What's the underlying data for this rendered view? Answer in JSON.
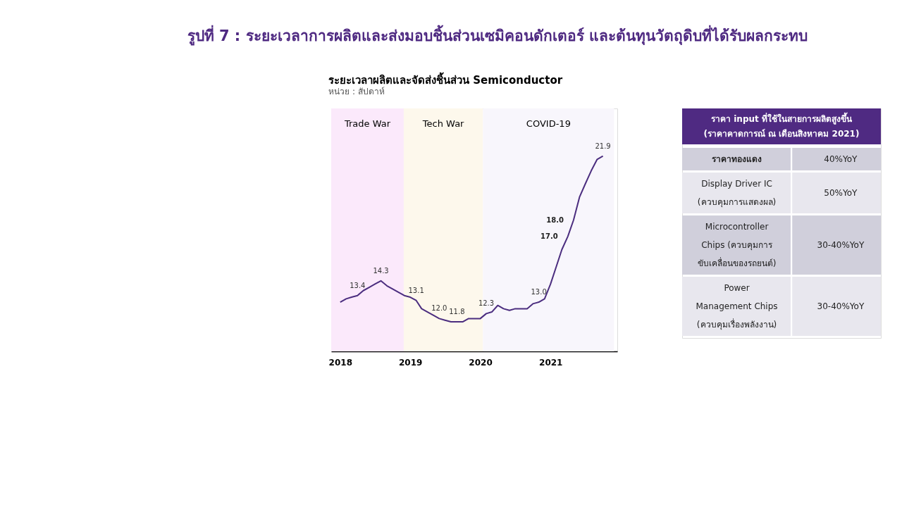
{
  "chart_data": [
    {
      "type": "line",
      "title": "ระยะเวลาผลิตและจัดส่งชิ้นส่วน Semiconductor",
      "subtitle": "หน่วย : สัปดาห์",
      "annotations": [
        "รูปที่ 7 : ระยะเวลาการผลิตและส่งมอบชิ้นส่วนเซมิคอนดักเตอร์ และต้นทุนวัตถุดิบที่ได้รับผลกระทบ"
      ],
      "x": [
        "2018-01",
        "2018-02",
        "2018-03",
        "2018-04",
        "2018-05",
        "2018-06",
        "2018-07",
        "2018-08",
        "2018-09",
        "2018-10",
        "2018-11",
        "2018-12",
        "2019-01",
        "2019-02",
        "2019-03",
        "2019-04",
        "2019-05",
        "2019-06",
        "2019-07",
        "2019-08",
        "2019-09",
        "2019-10",
        "2019-11",
        "2019-12",
        "2020-01",
        "2020-02",
        "2020-03",
        "2020-04",
        "2020-05",
        "2020-06",
        "2020-07",
        "2020-08",
        "2020-09",
        "2020-10",
        "2020-11",
        "2020-12",
        "2021-01",
        "2021-02",
        "2021-03",
        "2021-04",
        "2021-05",
        "2021-06",
        "2021-07",
        "2021-08",
        "2021-09",
        "2021-10"
      ],
      "series": [
        {
          "color": "#4b2d7f",
          "values": [
            13.0,
            13.2,
            13.3,
            13.4,
            13.7,
            13.9,
            14.1,
            14.3,
            14.0,
            13.8,
            13.6,
            13.4,
            13.3,
            13.1,
            12.6,
            12.4,
            12.2,
            12.0,
            11.9,
            11.8,
            11.8,
            11.8,
            12.0,
            12.0,
            12.0,
            12.3,
            12.4,
            12.8,
            12.6,
            12.5,
            12.6,
            12.6,
            12.6,
            12.9,
            13.0,
            13.2,
            14.1,
            15.2,
            16.2,
            17.0,
            18.0,
            19.4,
            20.2,
            21.0,
            21.7,
            21.9
          ],
          "value_labels": [
            null,
            null,
            null,
            "13.4",
            null,
            null,
            null,
            "14.3",
            null,
            null,
            null,
            null,
            null,
            "13.1",
            null,
            null,
            null,
            "12.0",
            null,
            null,
            "11.8",
            null,
            null,
            null,
            null,
            "12.3",
            null,
            null,
            null,
            null,
            null,
            null,
            null,
            null,
            "13.0",
            null,
            null,
            null,
            null,
            "17.0",
            "18.0",
            null,
            null,
            null,
            null,
            "21.9"
          ]
        }
      ],
      "xlim": [
        "2017-11-15",
        "2021-12-15"
      ],
      "xticks": [
        "2018",
        "2019",
        "2020",
        "2021"
      ],
      "ylim": [
        10,
        24.8
      ],
      "tick_labels": "x",
      "bands": [
        {
          "axis": "x",
          "from": "2017-11-15",
          "to": "2018-11-28",
          "label": "Trade War",
          "color": "#fbe9fb"
        },
        {
          "axis": "x",
          "from": "2018-11-28",
          "to": "2020-01-15",
          "label": "Tech War",
          "color": "#fdf8ec"
        },
        {
          "axis": "x",
          "from": "2020-01-15",
          "to": "2021-11-28",
          "label": "COVID-19",
          "color": "#f8f6fc"
        }
      ]
    },
    {
      "type": "other",
      "title": "ราคา input ที่ใช้ในสายการผลิตสูงขึ้น",
      "subtitle": "(ราคาคาดการณ์ ณ เดือนสิงหาคม 2021)",
      "annotations": [
        "ราคาทองแดง",
        "40%YoY",
        "Display Driver IC\n(ควบคุมการแสดงผล)",
        "50%YoY",
        "Microcontroller\nChips (ควบคุมการ\nขับเคลื่อนของรถยนต์)",
        "30-40%YoY",
        "Power\nManagement Chips\n(ควบคุมเรื่องพลังงาน)",
        "30-40%YoY"
      ]
    }
  ]
}
